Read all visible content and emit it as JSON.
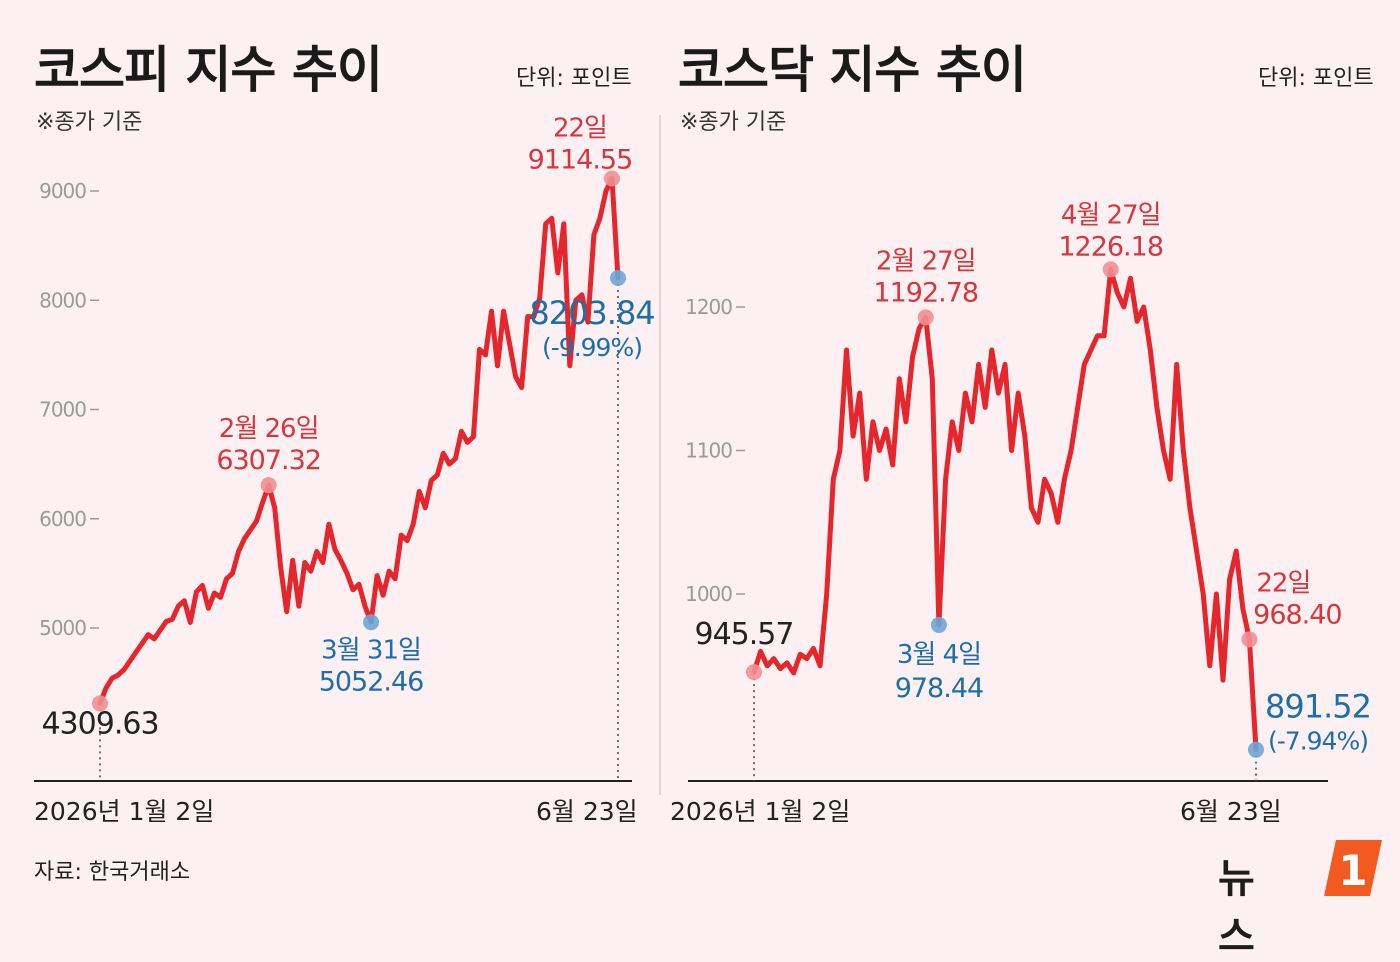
{
  "kospi": {
    "title": "코스피 지수 추이",
    "unit": "단위: 포인트",
    "note": "※종가 기준",
    "x_start": "2026년 1월 2일",
    "x_end": "6월 23일"
  },
  "kosdaq": {
    "title": "코스닥 지수 추이",
    "unit": "단위: 포인트",
    "note": "※종가 기준",
    "x_start": "2026년 1월 2일",
    "x_end": "6월 23일"
  },
  "source": "자료: 한국거래소",
  "brand": {
    "logo_text": "뉴스",
    "logo_mark": "1"
  },
  "colors": {
    "line": "#e5262c",
    "high": "#d6373d",
    "low": "#1f6fa6",
    "axis": "#222222",
    "tick": "#9a9a9a",
    "marker_high": "#ef8f92",
    "marker_low": "#6da6d6",
    "background": "#fcf0f3",
    "logo_accent": "#f25a1f"
  },
  "chart_data": [
    {
      "type": "line",
      "name": "kospi",
      "ylim": [
        4000,
        9500
      ],
      "yticks": [
        5000,
        6000,
        7000,
        8000,
        9000
      ],
      "grid": false,
      "y": [
        4309.63,
        4450,
        4540,
        4570,
        4620,
        4700,
        4780,
        4860,
        4940,
        4900,
        4980,
        5060,
        5080,
        5200,
        5250,
        5050,
        5330,
        5390,
        5180,
        5320,
        5280,
        5450,
        5500,
        5700,
        5820,
        5900,
        5980,
        6150,
        6307.32,
        6100,
        5550,
        5150,
        5620,
        5200,
        5600,
        5520,
        5700,
        5600,
        5950,
        5720,
        5620,
        5500,
        5350,
        5400,
        5200,
        5052.46,
        5480,
        5300,
        5520,
        5450,
        5850,
        5800,
        5950,
        6250,
        6100,
        6350,
        6400,
        6600,
        6500,
        6550,
        6800,
        6700,
        6750,
        7550,
        7500,
        7900,
        7400,
        7900,
        7600,
        7300,
        7200,
        7850,
        7850,
        8020,
        8700,
        8750,
        8250,
        8700,
        7400,
        8000,
        8050,
        7800,
        8600,
        8750,
        9000,
        9114.55,
        8203.84
      ],
      "points": [
        {
          "date": "2026년 1월 2일",
          "value": "4309.63"
        },
        {
          "date": "2월 26일",
          "value": "6307.32"
        },
        {
          "date": "3월 31일",
          "value": "5052.46"
        },
        {
          "date": "22일",
          "value": "9114.55"
        },
        {
          "date": "6월 23일",
          "value": "8203.84",
          "change": "(-9.99%)"
        }
      ]
    },
    {
      "type": "line",
      "name": "kosdaq",
      "ylim": [
        870,
        1250
      ],
      "yticks": [
        1000,
        1100,
        1200
      ],
      "grid": false,
      "y": [
        945.57,
        960,
        950,
        955,
        948,
        952,
        945,
        958,
        955,
        962,
        950,
        1000,
        1080,
        1100,
        1170,
        1110,
        1140,
        1080,
        1120,
        1100,
        1115,
        1090,
        1150,
        1120,
        1165,
        1185,
        1192.78,
        1150,
        978.44,
        1080,
        1120,
        1100,
        1140,
        1120,
        1160,
        1130,
        1170,
        1140,
        1160,
        1100,
        1140,
        1110,
        1060,
        1050,
        1080,
        1070,
        1050,
        1080,
        1100,
        1130,
        1160,
        1170,
        1180,
        1180,
        1226.18,
        1210,
        1200,
        1220,
        1190,
        1200,
        1170,
        1130,
        1100,
        1080,
        1160,
        1100,
        1060,
        1030,
        1000,
        950,
        1000,
        940,
        1010,
        1030,
        990,
        968.4,
        891.52
      ],
      "points": [
        {
          "date": "2026년 1월 2일",
          "value": "945.57"
        },
        {
          "date": "2월 27일",
          "value": "1192.78"
        },
        {
          "date": "3월 4일",
          "value": "978.44"
        },
        {
          "date": "4월 27일",
          "value": "1226.18"
        },
        {
          "date": "22일",
          "value": "968.40"
        },
        {
          "date": "6월 23일",
          "value": "891.52",
          "change": "(-7.94%)"
        }
      ]
    }
  ]
}
